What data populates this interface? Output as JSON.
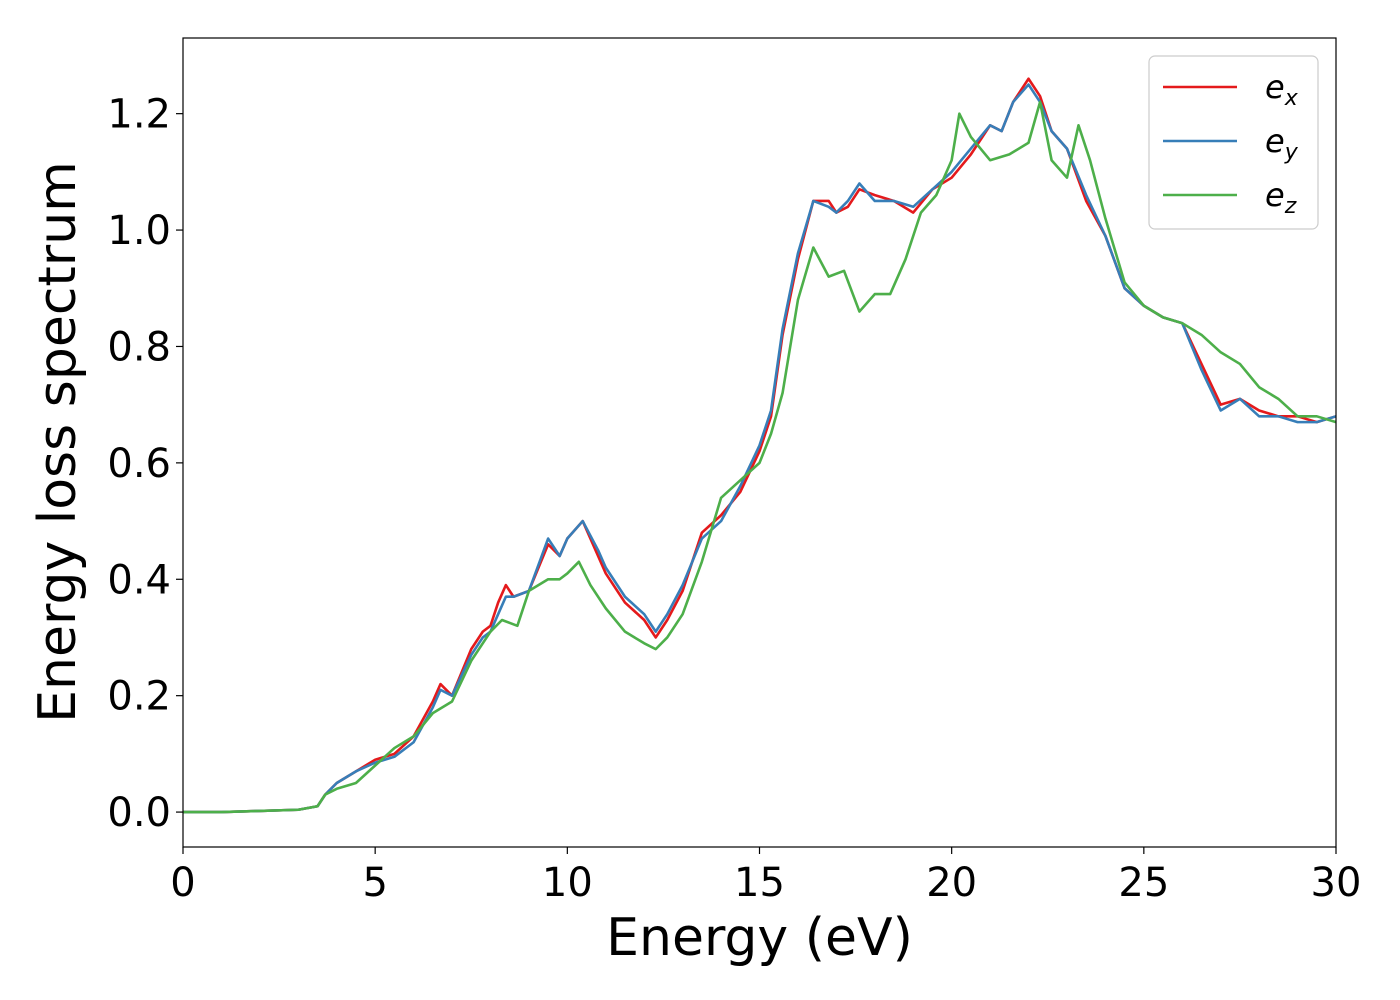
{
  "chart_data": {
    "type": "line",
    "title": "",
    "xlabel": "Energy (eV)",
    "ylabel": "Energy loss spectrum",
    "xlim": [
      0,
      30
    ],
    "ylim": [
      -0.06,
      1.33
    ],
    "xticks": [
      0,
      5,
      10,
      15,
      20,
      25,
      30
    ],
    "xtick_labels": [
      "0",
      "5",
      "10",
      "15",
      "20",
      "25",
      "30"
    ],
    "yticks": [
      0.0,
      0.2,
      0.4,
      0.6,
      0.8,
      1.0,
      1.2
    ],
    "ytick_labels": [
      "0.0",
      "0.2",
      "0.4",
      "0.6",
      "0.8",
      "1.0",
      "1.2"
    ],
    "grid": false,
    "legend": "top-right",
    "series": [
      {
        "name": "e",
        "subscript": "x",
        "color": "#e41a1c",
        "x": [
          0,
          1,
          2,
          3,
          3.5,
          3.7,
          4,
          4.5,
          5,
          5.5,
          6,
          6.5,
          6.7,
          7,
          7.5,
          7.8,
          8,
          8.2,
          8.4,
          8.6,
          9,
          9.5,
          9.8,
          10,
          10.4,
          10.8,
          11,
          11.5,
          12,
          12.3,
          12.6,
          13,
          13.5,
          14,
          14.5,
          15,
          15.3,
          15.6,
          16,
          16.4,
          16.8,
          17,
          17.3,
          17.6,
          18,
          18.5,
          19,
          19.5,
          20,
          20.5,
          21,
          21.3,
          21.6,
          22,
          22.3,
          22.6,
          23,
          23.5,
          24,
          24.5,
          25,
          25.5,
          26,
          26.5,
          27,
          27.5,
          28,
          28.5,
          29,
          29.5,
          30
        ],
        "values": [
          0,
          0,
          0.002,
          0.004,
          0.01,
          0.03,
          0.05,
          0.07,
          0.09,
          0.1,
          0.13,
          0.19,
          0.22,
          0.2,
          0.28,
          0.31,
          0.32,
          0.36,
          0.39,
          0.37,
          0.38,
          0.46,
          0.44,
          0.47,
          0.5,
          0.44,
          0.41,
          0.36,
          0.33,
          0.3,
          0.33,
          0.38,
          0.48,
          0.51,
          0.55,
          0.62,
          0.68,
          0.82,
          0.95,
          1.05,
          1.05,
          1.03,
          1.04,
          1.07,
          1.06,
          1.05,
          1.03,
          1.07,
          1.09,
          1.13,
          1.18,
          1.17,
          1.22,
          1.26,
          1.23,
          1.17,
          1.14,
          1.05,
          0.99,
          0.9,
          0.87,
          0.85,
          0.84,
          0.77,
          0.7,
          0.71,
          0.69,
          0.68,
          0.68,
          0.67,
          0.68
        ]
      },
      {
        "name": "e",
        "subscript": "y",
        "color": "#377eb8",
        "x": [
          0,
          1,
          2,
          3,
          3.5,
          3.7,
          4,
          4.5,
          5,
          5.5,
          6,
          6.5,
          6.7,
          7,
          7.5,
          7.8,
          8,
          8.2,
          8.4,
          8.6,
          9,
          9.5,
          9.8,
          10,
          10.4,
          10.8,
          11,
          11.5,
          12,
          12.3,
          12.6,
          13,
          13.5,
          14,
          14.5,
          15,
          15.3,
          15.6,
          16,
          16.4,
          16.8,
          17,
          17.3,
          17.6,
          18,
          18.5,
          19,
          19.5,
          20,
          20.5,
          21,
          21.3,
          21.6,
          22,
          22.3,
          22.6,
          23,
          23.5,
          24,
          24.5,
          25,
          25.5,
          26,
          26.5,
          27,
          27.5,
          28,
          28.5,
          29,
          29.5,
          30
        ],
        "values": [
          0,
          0,
          0.002,
          0.004,
          0.01,
          0.03,
          0.05,
          0.07,
          0.085,
          0.095,
          0.12,
          0.18,
          0.21,
          0.2,
          0.27,
          0.3,
          0.31,
          0.34,
          0.37,
          0.37,
          0.38,
          0.47,
          0.44,
          0.47,
          0.5,
          0.45,
          0.42,
          0.37,
          0.34,
          0.31,
          0.34,
          0.39,
          0.47,
          0.5,
          0.56,
          0.63,
          0.69,
          0.83,
          0.96,
          1.05,
          1.04,
          1.03,
          1.05,
          1.08,
          1.05,
          1.05,
          1.04,
          1.07,
          1.1,
          1.14,
          1.18,
          1.17,
          1.22,
          1.25,
          1.22,
          1.17,
          1.14,
          1.06,
          0.99,
          0.9,
          0.87,
          0.85,
          0.84,
          0.76,
          0.69,
          0.71,
          0.68,
          0.68,
          0.67,
          0.67,
          0.68
        ]
      },
      {
        "name": "e",
        "subscript": "z",
        "color": "#4daf4a",
        "x": [
          0,
          1,
          2,
          3,
          3.5,
          3.7,
          4,
          4.5,
          5,
          5.5,
          6,
          6.5,
          7,
          7.5,
          8,
          8.3,
          8.7,
          9,
          9.5,
          9.8,
          10,
          10.3,
          10.6,
          11,
          11.5,
          12,
          12.3,
          12.6,
          13,
          13.5,
          14,
          14.5,
          15,
          15.3,
          15.6,
          16,
          16.4,
          16.8,
          17.2,
          17.6,
          18,
          18.4,
          18.8,
          19.2,
          19.6,
          20,
          20.2,
          20.5,
          21,
          21.5,
          22,
          22.3,
          22.6,
          23,
          23.3,
          23.6,
          24,
          24.5,
          25,
          25.5,
          26,
          26.5,
          27,
          27.5,
          28,
          28.5,
          29,
          29.5,
          30
        ],
        "values": [
          0,
          0,
          0.002,
          0.004,
          0.01,
          0.03,
          0.04,
          0.05,
          0.08,
          0.11,
          0.13,
          0.17,
          0.19,
          0.26,
          0.31,
          0.33,
          0.32,
          0.38,
          0.4,
          0.4,
          0.41,
          0.43,
          0.39,
          0.35,
          0.31,
          0.29,
          0.28,
          0.3,
          0.34,
          0.43,
          0.54,
          0.57,
          0.6,
          0.65,
          0.72,
          0.88,
          0.97,
          0.92,
          0.93,
          0.86,
          0.89,
          0.89,
          0.95,
          1.03,
          1.06,
          1.12,
          1.2,
          1.16,
          1.12,
          1.13,
          1.15,
          1.22,
          1.12,
          1.09,
          1.18,
          1.12,
          1.02,
          0.91,
          0.87,
          0.85,
          0.84,
          0.82,
          0.79,
          0.77,
          0.73,
          0.71,
          0.68,
          0.68,
          0.67
        ]
      }
    ]
  }
}
